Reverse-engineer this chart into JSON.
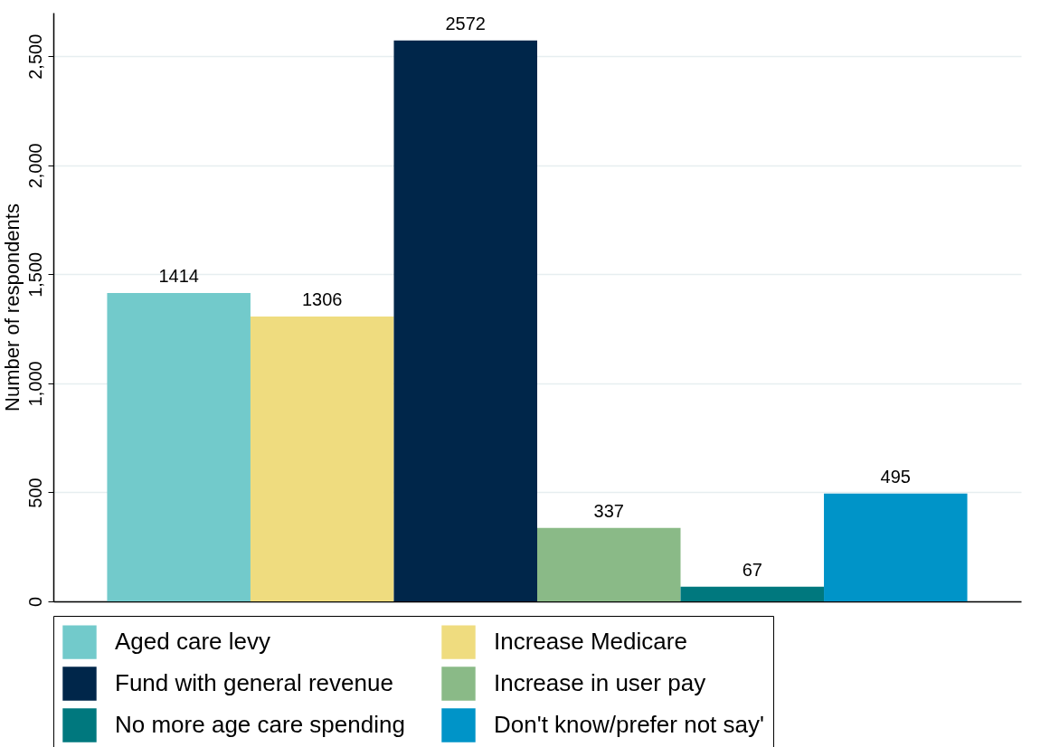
{
  "chart_data": {
    "type": "bar",
    "ylabel": "Number of respondents",
    "categories": [
      null
    ],
    "series": [
      {
        "name": "Aged care levy",
        "color": "#72cacb",
        "values": [
          1414
        ]
      },
      {
        "name": "Increase Medicare",
        "color": "#efdc7f",
        "values": [
          1306
        ]
      },
      {
        "name": "Fund with general revenue",
        "color": "#00264a",
        "values": [
          2572
        ]
      },
      {
        "name": "Increase in user pay",
        "color": "#8aba87",
        "values": [
          337
        ]
      },
      {
        "name": "No more age care spending",
        "color": "#00787e",
        "values": [
          67
        ]
      },
      {
        "name": "Don't know/prefer not say'",
        "color": "#0094c8",
        "values": [
          495
        ]
      }
    ],
    "ylim": [
      0,
      2700
    ],
    "yticks": [
      0,
      500,
      {
        "value": 1000,
        "label": "1,000"
      },
      {
        "value": 1500,
        "label": "1,500"
      },
      {
        "value": 2000,
        "label": "2,000"
      },
      {
        "value": 2500,
        "label": "2,500"
      }
    ],
    "grid": "y",
    "legend": "bottom",
    "data_labels": true
  }
}
